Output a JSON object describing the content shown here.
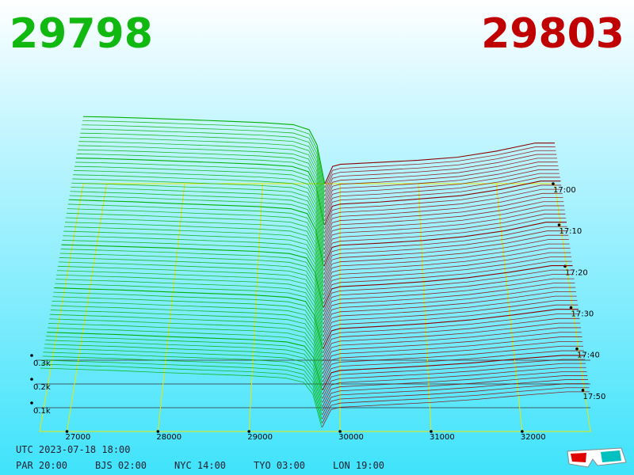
{
  "header": {
    "bid": "29798",
    "ask": "29803"
  },
  "chart_data": {
    "type": "depth3d",
    "xlim": [
      26700,
      32750
    ],
    "xticks": [
      27000,
      28000,
      29000,
      30000,
      31000,
      32000
    ],
    "ylim": [
      0,
      400
    ],
    "yticks": [
      {
        "value": 100,
        "label": "0.1k"
      },
      {
        "value": 200,
        "label": "0.2k"
      },
      {
        "value": 300,
        "label": "0.3k"
      }
    ],
    "zlim": [
      "17:00",
      "18:00"
    ],
    "zticks": [
      "17:00",
      "17:10",
      "17:20",
      "17:30",
      "17:40",
      "17:50"
    ],
    "series": [
      {
        "color": "#00b000",
        "x": [
          26700,
          27000,
          27500,
          28000,
          28500,
          29000,
          29400,
          29600,
          29700,
          29798
        ],
        "values": [
          [
            330,
            328,
            322,
            315,
            308,
            300,
            290,
            265,
            190,
            0
          ],
          [
            320,
            318,
            312,
            305,
            298,
            290,
            280,
            255,
            180,
            0
          ],
          [
            310,
            306,
            300,
            292,
            285,
            278,
            268,
            245,
            170,
            0
          ],
          [
            285,
            282,
            276,
            270,
            262,
            255,
            245,
            225,
            160,
            0
          ],
          [
            270,
            266,
            260,
            252,
            245,
            238,
            228,
            210,
            150,
            0
          ],
          [
            250,
            246,
            240,
            232,
            225,
            218,
            208,
            190,
            140,
            0
          ]
        ]
      },
      {
        "color": "#8b0000",
        "x": [
          29803,
          29900,
          30000,
          30500,
          31000,
          31500,
          32000,
          32500,
          32750
        ],
        "values": [
          [
            0,
            85,
            95,
            105,
            115,
            130,
            160,
            200,
            200
          ],
          [
            0,
            90,
            100,
            110,
            125,
            140,
            170,
            210,
            210
          ],
          [
            0,
            88,
            98,
            108,
            120,
            138,
            165,
            205,
            205
          ],
          [
            0,
            85,
            95,
            105,
            118,
            135,
            160,
            190,
            190
          ],
          [
            0,
            80,
            90,
            100,
            112,
            128,
            150,
            175,
            175
          ],
          [
            0,
            75,
            85,
            95,
            105,
            118,
            135,
            150,
            150
          ]
        ]
      }
    ]
  },
  "footer": {
    "utc": "UTC 2023-07-18 18:00",
    "cities": [
      "PAR 20:00",
      "BJS 02:00",
      "NYC 14:00",
      "TYO 03:00",
      "LON 19:00"
    ]
  }
}
